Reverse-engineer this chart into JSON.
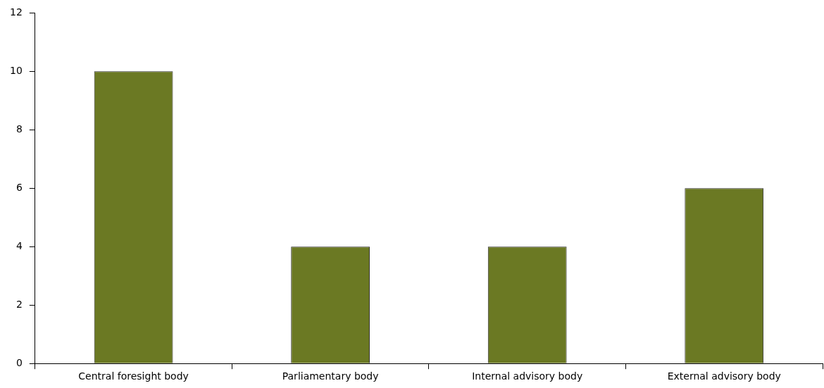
{
  "chart_data": {
    "type": "bar",
    "categories": [
      "Central foresight body",
      "Parliamentary body",
      "Internal advisory body",
      "External advisory body"
    ],
    "values": [
      10,
      4,
      4,
      6
    ],
    "color": "#6b7923",
    "ylim": [
      0,
      12
    ],
    "yticks": [
      0,
      2,
      4,
      6,
      8,
      10,
      12
    ],
    "grid": false,
    "legend": false
  }
}
